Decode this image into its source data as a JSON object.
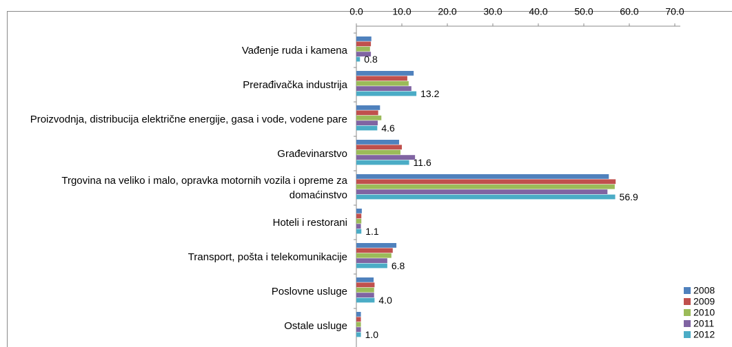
{
  "chart_data": {
    "type": "hbar",
    "categories": [
      "Vađenje ruda i kamena",
      "Prerađivačka industrija",
      "Proizvodnja, distribucija električne energije, gasa i vode, vodene pare",
      "Građevinarstvo",
      "Trgovina na veliko i malo, opravka motornih vozila i opreme za domaćinstvo",
      "Hoteli i restorani",
      "Transport, pošta i telekomunikacije",
      "Poslovne usluge",
      "Ostale usluge"
    ],
    "series": [
      {
        "name": "2008",
        "color": "#4f81bd",
        "values": [
          3.3,
          12.6,
          5.2,
          9.4,
          55.5,
          1.2,
          8.8,
          3.8,
          1.0
        ]
      },
      {
        "name": "2009",
        "color": "#c0504d",
        "values": [
          3.2,
          11.2,
          4.8,
          10.0,
          57.0,
          1.1,
          8.0,
          4.0,
          1.0
        ]
      },
      {
        "name": "2010",
        "color": "#9bbb59",
        "values": [
          3.0,
          11.5,
          5.5,
          9.7,
          56.8,
          1.1,
          7.7,
          3.9,
          1.0
        ]
      },
      {
        "name": "2011",
        "color": "#8064a2",
        "values": [
          3.2,
          12.1,
          4.7,
          12.9,
          55.2,
          1.0,
          6.8,
          3.9,
          1.0
        ]
      },
      {
        "name": "2012",
        "color": "#4bacc6",
        "values": [
          0.8,
          13.2,
          4.6,
          11.6,
          56.9,
          1.1,
          6.8,
          4.0,
          1.0
        ],
        "value_labels": [
          "0.8",
          "13.2",
          "4.6",
          "11.6",
          "56.9",
          "1.1",
          "6.8",
          "4.0",
          "1.0"
        ]
      }
    ],
    "xlim": [
      0,
      70
    ],
    "xticks": [
      {
        "value": 0,
        "label": "0.0"
      },
      {
        "value": 10,
        "label": "10.0"
      },
      {
        "value": 20,
        "label": "20.0"
      },
      {
        "value": 30,
        "label": "30.0"
      },
      {
        "value": 40,
        "label": "40.0"
      },
      {
        "value": 50,
        "label": "50.0"
      },
      {
        "value": 60,
        "label": "60.0"
      },
      {
        "value": 70,
        "label": "70.0"
      }
    ],
    "legend": "bottom-right"
  }
}
